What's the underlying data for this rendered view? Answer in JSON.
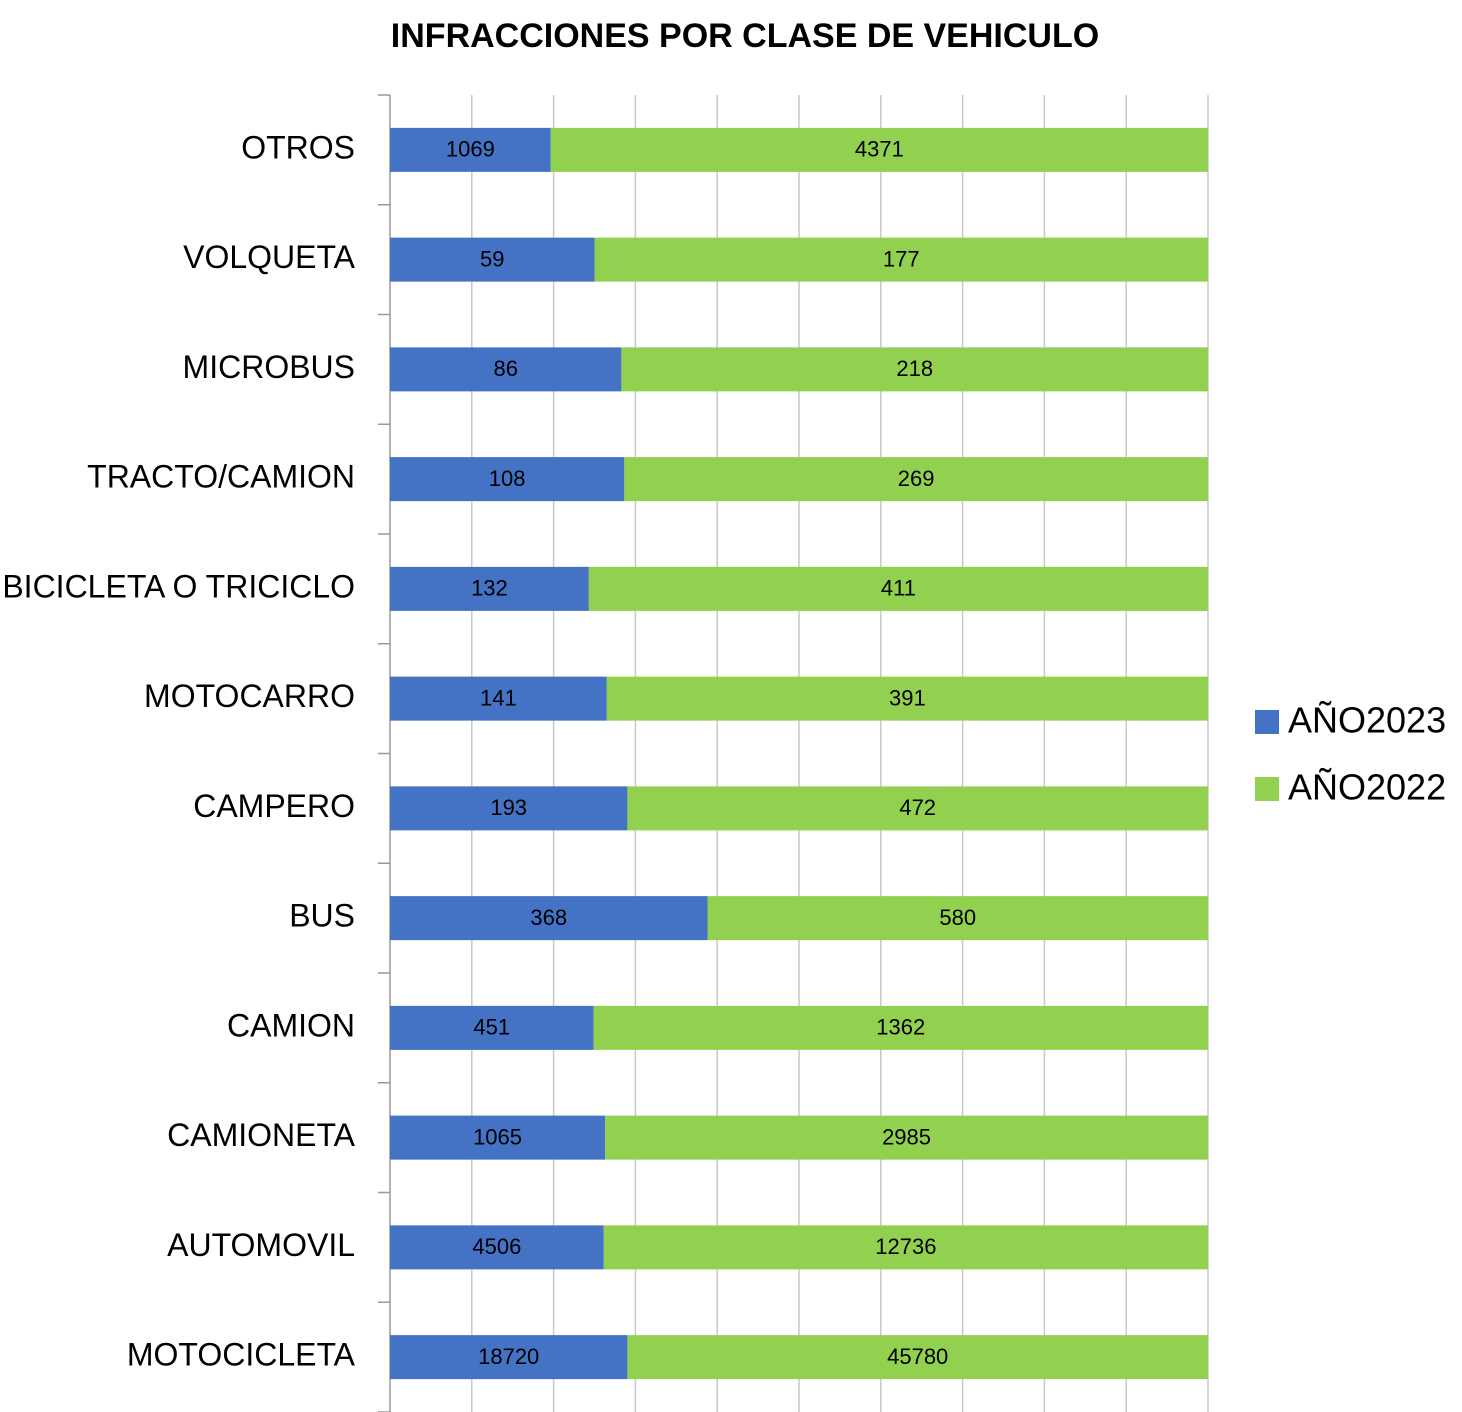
{
  "chart_data": {
    "type": "bar",
    "orientation": "horizontal",
    "stacked": "percent",
    "title": "INFRACCIONES POR CLASE DE VEHICULO",
    "categories": [
      "OTROS",
      "VOLQUETA",
      "MICROBUS",
      "TRACTO/CAMION",
      "BICICLETA O TRICICLO",
      "MOTOCARRO",
      "CAMPERO",
      "BUS",
      "CAMION",
      "CAMIONETA",
      "AUTOMOVIL",
      "MOTOCICLETA"
    ],
    "series": [
      {
        "name": "AÑO2023",
        "color": "#4472c4",
        "values": [
          1069,
          59,
          86,
          108,
          132,
          141,
          193,
          368,
          451,
          1065,
          4506,
          18720
        ]
      },
      {
        "name": "AÑO2022",
        "color": "#92d050",
        "values": [
          4371,
          177,
          218,
          269,
          411,
          391,
          472,
          580,
          1362,
          2985,
          12736,
          45780
        ]
      }
    ],
    "xlim": [
      0,
      100
    ],
    "xticks": [
      0,
      10,
      20,
      30,
      40,
      50,
      60,
      70,
      80,
      90,
      100
    ],
    "grid": true,
    "legend": "right"
  }
}
